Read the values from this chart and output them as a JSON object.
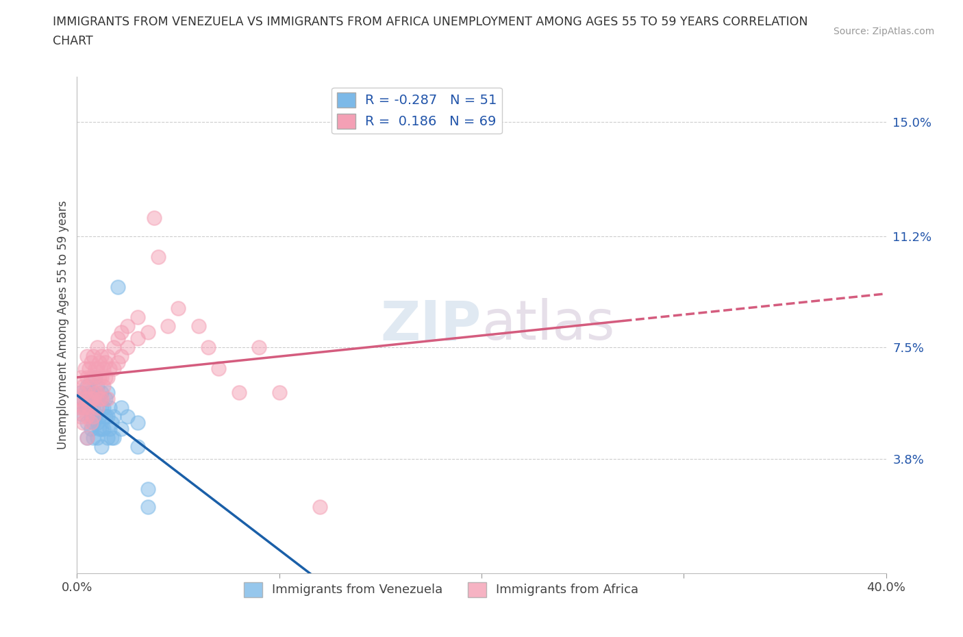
{
  "title_line1": "IMMIGRANTS FROM VENEZUELA VS IMMIGRANTS FROM AFRICA UNEMPLOYMENT AMONG AGES 55 TO 59 YEARS CORRELATION",
  "title_line2": "CHART",
  "source": "Source: ZipAtlas.com",
  "xlabel": "",
  "ylabel": "Unemployment Among Ages 55 to 59 years",
  "xlim": [
    0.0,
    0.4
  ],
  "ylim": [
    0.0,
    0.165
  ],
  "yticks": [
    0.038,
    0.075,
    0.112,
    0.15
  ],
  "ytick_labels": [
    "3.8%",
    "7.5%",
    "11.2%",
    "15.0%"
  ],
  "xticks": [
    0.0,
    0.1,
    0.2,
    0.3,
    0.4
  ],
  "xtick_labels": [
    "0.0%",
    "",
    "",
    "",
    "40.0%"
  ],
  "venezuela_color": "#7cb9e8",
  "africa_color": "#f4a0b5",
  "venezuela_line_color": "#1a5fa8",
  "africa_line_color": "#d45c7e",
  "venezuela_R": -0.287,
  "venezuela_N": 51,
  "africa_R": 0.186,
  "africa_N": 69,
  "background_color": "#ffffff",
  "legend_labels": [
    "Immigrants from Venezuela",
    "Immigrants from Africa"
  ],
  "venezuela_scatter": [
    [
      0.002,
      0.06
    ],
    [
      0.002,
      0.053
    ],
    [
      0.003,
      0.058
    ],
    [
      0.004,
      0.056
    ],
    [
      0.005,
      0.062
    ],
    [
      0.005,
      0.055
    ],
    [
      0.005,
      0.05
    ],
    [
      0.005,
      0.045
    ],
    [
      0.006,
      0.06
    ],
    [
      0.007,
      0.058
    ],
    [
      0.007,
      0.052
    ],
    [
      0.007,
      0.048
    ],
    [
      0.008,
      0.06
    ],
    [
      0.008,
      0.055
    ],
    [
      0.008,
      0.05
    ],
    [
      0.008,
      0.045
    ],
    [
      0.009,
      0.065
    ],
    [
      0.009,
      0.058
    ],
    [
      0.009,
      0.052
    ],
    [
      0.01,
      0.062
    ],
    [
      0.01,
      0.058
    ],
    [
      0.01,
      0.05
    ],
    [
      0.01,
      0.045
    ],
    [
      0.011,
      0.058
    ],
    [
      0.011,
      0.052
    ],
    [
      0.011,
      0.048
    ],
    [
      0.012,
      0.06
    ],
    [
      0.012,
      0.055
    ],
    [
      0.012,
      0.048
    ],
    [
      0.012,
      0.042
    ],
    [
      0.013,
      0.055
    ],
    [
      0.013,
      0.048
    ],
    [
      0.014,
      0.058
    ],
    [
      0.014,
      0.052
    ],
    [
      0.015,
      0.06
    ],
    [
      0.015,
      0.052
    ],
    [
      0.015,
      0.045
    ],
    [
      0.016,
      0.055
    ],
    [
      0.016,
      0.048
    ],
    [
      0.017,
      0.05
    ],
    [
      0.017,
      0.045
    ],
    [
      0.018,
      0.052
    ],
    [
      0.018,
      0.045
    ],
    [
      0.02,
      0.095
    ],
    [
      0.022,
      0.055
    ],
    [
      0.022,
      0.048
    ],
    [
      0.025,
      0.052
    ],
    [
      0.03,
      0.05
    ],
    [
      0.03,
      0.042
    ],
    [
      0.035,
      0.028
    ],
    [
      0.035,
      0.022
    ]
  ],
  "africa_scatter": [
    [
      0.001,
      0.06
    ],
    [
      0.001,
      0.055
    ],
    [
      0.002,
      0.065
    ],
    [
      0.002,
      0.058
    ],
    [
      0.002,
      0.052
    ],
    [
      0.003,
      0.062
    ],
    [
      0.003,
      0.055
    ],
    [
      0.003,
      0.05
    ],
    [
      0.004,
      0.068
    ],
    [
      0.004,
      0.06
    ],
    [
      0.004,
      0.055
    ],
    [
      0.005,
      0.072
    ],
    [
      0.005,
      0.065
    ],
    [
      0.005,
      0.058
    ],
    [
      0.005,
      0.052
    ],
    [
      0.005,
      0.045
    ],
    [
      0.006,
      0.068
    ],
    [
      0.006,
      0.062
    ],
    [
      0.006,
      0.055
    ],
    [
      0.007,
      0.07
    ],
    [
      0.007,
      0.065
    ],
    [
      0.007,
      0.058
    ],
    [
      0.007,
      0.05
    ],
    [
      0.008,
      0.072
    ],
    [
      0.008,
      0.065
    ],
    [
      0.008,
      0.058
    ],
    [
      0.008,
      0.052
    ],
    [
      0.009,
      0.068
    ],
    [
      0.009,
      0.06
    ],
    [
      0.01,
      0.075
    ],
    [
      0.01,
      0.068
    ],
    [
      0.01,
      0.06
    ],
    [
      0.01,
      0.055
    ],
    [
      0.011,
      0.07
    ],
    [
      0.011,
      0.065
    ],
    [
      0.011,
      0.058
    ],
    [
      0.012,
      0.072
    ],
    [
      0.012,
      0.065
    ],
    [
      0.012,
      0.058
    ],
    [
      0.013,
      0.068
    ],
    [
      0.013,
      0.062
    ],
    [
      0.014,
      0.07
    ],
    [
      0.014,
      0.065
    ],
    [
      0.015,
      0.072
    ],
    [
      0.015,
      0.065
    ],
    [
      0.015,
      0.058
    ],
    [
      0.016,
      0.068
    ],
    [
      0.018,
      0.075
    ],
    [
      0.018,
      0.068
    ],
    [
      0.02,
      0.078
    ],
    [
      0.02,
      0.07
    ],
    [
      0.022,
      0.08
    ],
    [
      0.022,
      0.072
    ],
    [
      0.025,
      0.082
    ],
    [
      0.025,
      0.075
    ],
    [
      0.03,
      0.085
    ],
    [
      0.03,
      0.078
    ],
    [
      0.035,
      0.08
    ],
    [
      0.038,
      0.118
    ],
    [
      0.04,
      0.105
    ],
    [
      0.045,
      0.082
    ],
    [
      0.05,
      0.088
    ],
    [
      0.06,
      0.082
    ],
    [
      0.065,
      0.075
    ],
    [
      0.07,
      0.068
    ],
    [
      0.08,
      0.06
    ],
    [
      0.09,
      0.075
    ],
    [
      0.1,
      0.06
    ],
    [
      0.12,
      0.022
    ]
  ]
}
